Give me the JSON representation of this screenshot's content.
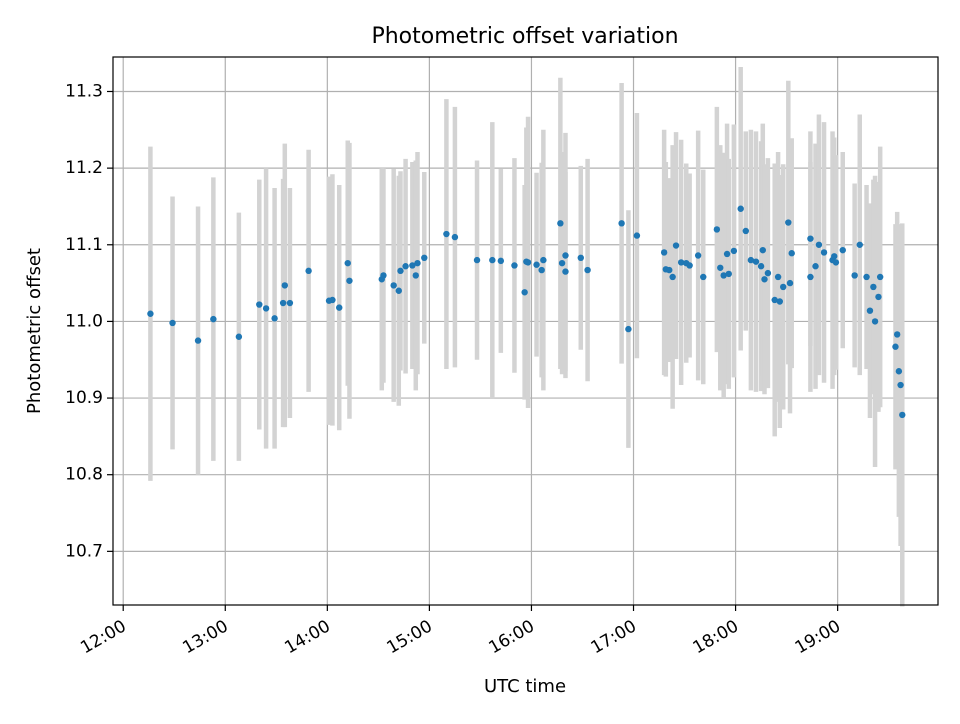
{
  "chart_data": {
    "type": "scatter",
    "title": "Photometric offset variation",
    "xlabel": "UTC time",
    "ylabel": "Photometric offset",
    "xlim": [
      "11:54",
      "19:59"
    ],
    "ylim": [
      10.63,
      11.345
    ],
    "grid": true,
    "x_ticks": [
      "12:00",
      "13:00",
      "14:00",
      "15:00",
      "16:00",
      "17:00",
      "18:00",
      "19:00"
    ],
    "y_ticks": [
      "10.7",
      "10.8",
      "10.9",
      "11.0",
      "11.1",
      "11.2",
      "11.3"
    ],
    "colors": {
      "point": "#1f77b4",
      "errorbar": "#d3d3d3",
      "grid": "#b0b0b0",
      "axis": "#000000"
    },
    "series": [
      {
        "points": [
          {
            "x": "12:16",
            "y": 11.01,
            "err": 0.218
          },
          {
            "x": "12:29",
            "y": 10.998,
            "err": 0.165
          },
          {
            "x": "12:44",
            "y": 10.975,
            "err": 0.175
          },
          {
            "x": "12:53",
            "y": 11.003,
            "err": 0.185
          },
          {
            "x": "13:08",
            "y": 10.98,
            "err": 0.162
          },
          {
            "x": "13:20",
            "y": 11.022,
            "err": 0.163
          },
          {
            "x": "13:24",
            "y": 11.017,
            "err": 0.183
          },
          {
            "x": "13:29",
            "y": 11.004,
            "err": 0.17
          },
          {
            "x": "13:34",
            "y": 11.024,
            "err": 0.162
          },
          {
            "x": "13:35",
            "y": 11.047,
            "err": 0.185
          },
          {
            "x": "13:38",
            "y": 11.024,
            "err": 0.15
          },
          {
            "x": "13:49",
            "y": 11.066,
            "err": 0.158
          },
          {
            "x": "14:01",
            "y": 11.027,
            "err": 0.162
          },
          {
            "x": "14:03",
            "y": 11.028,
            "err": 0.164
          },
          {
            "x": "14:07",
            "y": 11.018,
            "err": 0.16
          },
          {
            "x": "14:12",
            "y": 11.076,
            "err": 0.16
          },
          {
            "x": "14:13",
            "y": 11.053,
            "err": 0.18
          },
          {
            "x": "14:32",
            "y": 11.055,
            "err": 0.145
          },
          {
            "x": "14:33",
            "y": 11.06,
            "err": 0.14
          },
          {
            "x": "14:39",
            "y": 11.047,
            "err": 0.152
          },
          {
            "x": "14:42",
            "y": 11.04,
            "err": 0.15
          },
          {
            "x": "14:43",
            "y": 11.066,
            "err": 0.13
          },
          {
            "x": "14:46",
            "y": 11.072,
            "err": 0.14
          },
          {
            "x": "14:50",
            "y": 11.073,
            "err": 0.135
          },
          {
            "x": "14:52",
            "y": 11.06,
            "err": 0.15
          },
          {
            "x": "14:53",
            "y": 11.076,
            "err": 0.145
          },
          {
            "x": "14:57",
            "y": 11.083,
            "err": 0.112
          },
          {
            "x": "15:10",
            "y": 11.114,
            "err": 0.176
          },
          {
            "x": "15:15",
            "y": 11.11,
            "err": 0.17
          },
          {
            "x": "15:28",
            "y": 11.08,
            "err": 0.13
          },
          {
            "x": "15:37",
            "y": 11.08,
            "err": 0.18
          },
          {
            "x": "15:42",
            "y": 11.079,
            "err": 0.12
          },
          {
            "x": "15:50",
            "y": 11.073,
            "err": 0.14
          },
          {
            "x": "15:56",
            "y": 11.038,
            "err": 0.14
          },
          {
            "x": "15:57",
            "y": 11.078,
            "err": 0.175
          },
          {
            "x": "15:58",
            "y": 11.077,
            "err": 0.19
          },
          {
            "x": "16:03",
            "y": 11.074,
            "err": 0.12
          },
          {
            "x": "16:06",
            "y": 11.067,
            "err": 0.14
          },
          {
            "x": "16:07",
            "y": 11.08,
            "err": 0.17
          },
          {
            "x": "16:17",
            "y": 11.128,
            "err": 0.19
          },
          {
            "x": "16:18",
            "y": 11.076,
            "err": 0.145
          },
          {
            "x": "16:20",
            "y": 11.086,
            "err": 0.16
          },
          {
            "x": "16:20",
            "y": 11.065,
            "err": 0.13
          },
          {
            "x": "16:29",
            "y": 11.083,
            "err": 0.12
          },
          {
            "x": "16:33",
            "y": 11.067,
            "err": 0.145
          },
          {
            "x": "16:53",
            "y": 11.128,
            "err": 0.183
          },
          {
            "x": "16:57",
            "y": 10.99,
            "err": 0.155
          },
          {
            "x": "17:02",
            "y": 11.112,
            "err": 0.16
          },
          {
            "x": "17:18",
            "y": 11.09,
            "err": 0.16
          },
          {
            "x": "17:19",
            "y": 11.068,
            "err": 0.14
          },
          {
            "x": "17:21",
            "y": 11.067,
            "err": 0.12
          },
          {
            "x": "17:23",
            "y": 11.058,
            "err": 0.172
          },
          {
            "x": "17:25",
            "y": 11.099,
            "err": 0.148
          },
          {
            "x": "17:28",
            "y": 11.077,
            "err": 0.16
          },
          {
            "x": "17:31",
            "y": 11.076,
            "err": 0.13
          },
          {
            "x": "17:33",
            "y": 11.073,
            "err": 0.12
          },
          {
            "x": "17:38",
            "y": 11.086,
            "err": 0.163
          },
          {
            "x": "17:41",
            "y": 11.058,
            "err": 0.14
          },
          {
            "x": "17:49",
            "y": 11.12,
            "err": 0.16
          },
          {
            "x": "17:51",
            "y": 11.07,
            "err": 0.16
          },
          {
            "x": "17:53",
            "y": 11.06,
            "err": 0.16
          },
          {
            "x": "17:55",
            "y": 11.088,
            "err": 0.17
          },
          {
            "x": "17:56",
            "y": 11.062,
            "err": 0.15
          },
          {
            "x": "17:59",
            "y": 11.092,
            "err": 0.165
          },
          {
            "x": "18:03",
            "y": 11.147,
            "err": 0.185
          },
          {
            "x": "18:06",
            "y": 11.118,
            "err": 0.13
          },
          {
            "x": "18:09",
            "y": 11.08,
            "err": 0.17
          },
          {
            "x": "18:12",
            "y": 11.078,
            "err": 0.17
          },
          {
            "x": "18:15",
            "y": 11.072,
            "err": 0.163
          },
          {
            "x": "18:16",
            "y": 11.093,
            "err": 0.165
          },
          {
            "x": "18:17",
            "y": 11.055,
            "err": 0.15
          },
          {
            "x": "18:19",
            "y": 11.063,
            "err": 0.15
          },
          {
            "x": "18:23",
            "y": 11.028,
            "err": 0.178
          },
          {
            "x": "18:25",
            "y": 11.058,
            "err": 0.163
          },
          {
            "x": "18:26",
            "y": 11.026,
            "err": 0.165
          },
          {
            "x": "18:28",
            "y": 11.045,
            "err": 0.16
          },
          {
            "x": "18:31",
            "y": 11.129,
            "err": 0.185
          },
          {
            "x": "18:32",
            "y": 11.05,
            "err": 0.17
          },
          {
            "x": "18:33",
            "y": 11.089,
            "err": 0.15
          },
          {
            "x": "18:44",
            "y": 11.108,
            "err": 0.14
          },
          {
            "x": "18:44",
            "y": 11.058,
            "err": 0.15
          },
          {
            "x": "18:47",
            "y": 11.072,
            "err": 0.16
          },
          {
            "x": "18:49",
            "y": 11.1,
            "err": 0.17
          },
          {
            "x": "18:52",
            "y": 11.09,
            "err": 0.17
          },
          {
            "x": "18:57",
            "y": 11.08,
            "err": 0.168
          },
          {
            "x": "18:58",
            "y": 11.085,
            "err": 0.155
          },
          {
            "x": "18:59",
            "y": 11.077,
            "err": 0.14
          },
          {
            "x": "19:03",
            "y": 11.093,
            "err": 0.128
          },
          {
            "x": "19:10",
            "y": 11.06,
            "err": 0.12
          },
          {
            "x": "19:13",
            "y": 11.1,
            "err": 0.17
          },
          {
            "x": "19:17",
            "y": 11.058,
            "err": 0.12
          },
          {
            "x": "19:19",
            "y": 11.014,
            "err": 0.14
          },
          {
            "x": "19:21",
            "y": 11.045,
            "err": 0.14
          },
          {
            "x": "19:22",
            "y": 11.0,
            "err": 0.19
          },
          {
            "x": "19:24",
            "y": 11.032,
            "err": 0.15
          },
          {
            "x": "19:25",
            "y": 11.058,
            "err": 0.17
          },
          {
            "x": "19:34",
            "y": 10.967,
            "err": 0.16
          },
          {
            "x": "19:35",
            "y": 10.983,
            "err": 0.16
          },
          {
            "x": "19:36",
            "y": 10.935,
            "err": 0.19
          },
          {
            "x": "19:37",
            "y": 10.917,
            "err": 0.21
          },
          {
            "x": "19:38",
            "y": 10.878,
            "err": 0.25
          }
        ]
      }
    ]
  }
}
